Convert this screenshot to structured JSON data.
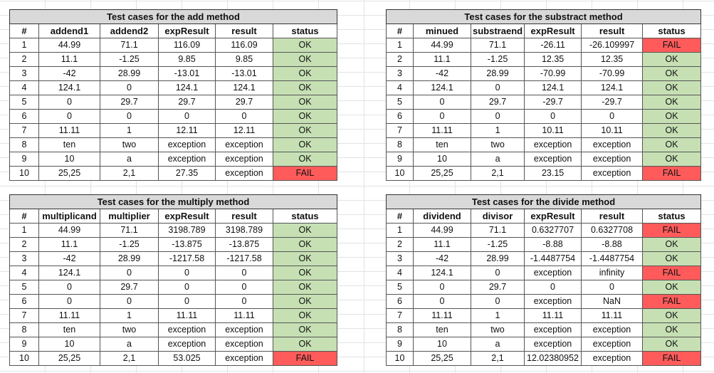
{
  "tables": [
    {
      "title": "Test cases for the add method",
      "headers": [
        "#",
        "addend1",
        "addend2",
        "expResult",
        "result",
        "status"
      ],
      "rows": [
        [
          "1",
          "44.99",
          "71.1",
          "116.09",
          "116.09",
          "OK"
        ],
        [
          "2",
          "11.1",
          "-1.25",
          "9.85",
          "9.85",
          "OK"
        ],
        [
          "3",
          "-42",
          "28.99",
          "-13.01",
          "-13.01",
          "OK"
        ],
        [
          "4",
          "124.1",
          "0",
          "124.1",
          "124.1",
          "OK"
        ],
        [
          "5",
          "0",
          "29.7",
          "29.7",
          "29.7",
          "OK"
        ],
        [
          "6",
          "0",
          "0",
          "0",
          "0",
          "OK"
        ],
        [
          "7",
          "11.11",
          "1",
          "12.11",
          "12.11",
          "OK"
        ],
        [
          "8",
          "ten",
          "two",
          "exception",
          "exception",
          "OK"
        ],
        [
          "9",
          "10",
          "a",
          "exception",
          "exception",
          "OK"
        ],
        [
          "10",
          "25,25",
          "2,1",
          "27.35",
          "exception",
          "FAIL"
        ]
      ]
    },
    {
      "title": "Test cases for the substract method",
      "headers": [
        "#",
        "minued",
        "substraend",
        "expResult",
        "result",
        "status"
      ],
      "rows": [
        [
          "1",
          "44.99",
          "71.1",
          "-26.11",
          "-26.109997",
          "FAIL"
        ],
        [
          "2",
          "11.1",
          "-1.25",
          "12.35",
          "12.35",
          "OK"
        ],
        [
          "3",
          "-42",
          "28.99",
          "-70.99",
          "-70.99",
          "OK"
        ],
        [
          "4",
          "124.1",
          "0",
          "124.1",
          "124.1",
          "OK"
        ],
        [
          "5",
          "0",
          "29.7",
          "-29.7",
          "-29.7",
          "OK"
        ],
        [
          "6",
          "0",
          "0",
          "0",
          "0",
          "OK"
        ],
        [
          "7",
          "11.11",
          "1",
          "10.11",
          "10.11",
          "OK"
        ],
        [
          "8",
          "ten",
          "two",
          "exception",
          "exception",
          "OK"
        ],
        [
          "9",
          "10",
          "a",
          "exception",
          "exception",
          "OK"
        ],
        [
          "10",
          "25,25",
          "2,1",
          "23.15",
          "exception",
          "FAIL"
        ]
      ]
    },
    {
      "title": "Test cases for the multiply method",
      "headers": [
        "#",
        "multiplicand",
        "multiplier",
        "expResult",
        "result",
        "status"
      ],
      "rows": [
        [
          "1",
          "44.99",
          "71.1",
          "3198.789",
          "3198.789",
          "OK"
        ],
        [
          "2",
          "11.1",
          "-1.25",
          "-13.875",
          "-13.875",
          "OK"
        ],
        [
          "3",
          "-42",
          "28.99",
          "-1217.58",
          "-1217.58",
          "OK"
        ],
        [
          "4",
          "124.1",
          "0",
          "0",
          "0",
          "OK"
        ],
        [
          "5",
          "0",
          "29.7",
          "0",
          "0",
          "OK"
        ],
        [
          "6",
          "0",
          "0",
          "0",
          "0",
          "OK"
        ],
        [
          "7",
          "11.11",
          "1",
          "11.11",
          "11.11",
          "OK"
        ],
        [
          "8",
          "ten",
          "two",
          "exception",
          "exception",
          "OK"
        ],
        [
          "9",
          "10",
          "a",
          "exception",
          "exception",
          "OK"
        ],
        [
          "10",
          "25,25",
          "2,1",
          "53.025",
          "exception",
          "FAIL"
        ]
      ]
    },
    {
      "title": "Test cases for the divide method",
      "headers": [
        "#",
        "dividend",
        "divisor",
        "expResult",
        "result",
        "status"
      ],
      "rows": [
        [
          "1",
          "44.99",
          "71.1",
          "0.6327707",
          "0.6327708",
          "FAIL"
        ],
        [
          "2",
          "11.1",
          "-1.25",
          "-8.88",
          "-8.88",
          "OK"
        ],
        [
          "3",
          "-42",
          "28.99",
          "-1.4487754",
          "-1.4487754",
          "OK"
        ],
        [
          "4",
          "124.1",
          "0",
          "exception",
          "infinity",
          "FAIL"
        ],
        [
          "5",
          "0",
          "29.7",
          "0",
          "0",
          "OK"
        ],
        [
          "6",
          "0",
          "0",
          "exception",
          "NaN",
          "FAIL"
        ],
        [
          "7",
          "11.11",
          "1",
          "11.11",
          "11.11",
          "OK"
        ],
        [
          "8",
          "ten",
          "two",
          "exception",
          "exception",
          "OK"
        ],
        [
          "9",
          "10",
          "a",
          "exception",
          "exception",
          "OK"
        ],
        [
          "10",
          "25,25",
          "2,1",
          "12.02380952",
          "exception",
          "FAIL"
        ]
      ]
    }
  ],
  "status_colors": {
    "OK": "#c6e0b4",
    "FAIL": "#ff5b5b",
    "title_bg": "#d9d9d9"
  }
}
